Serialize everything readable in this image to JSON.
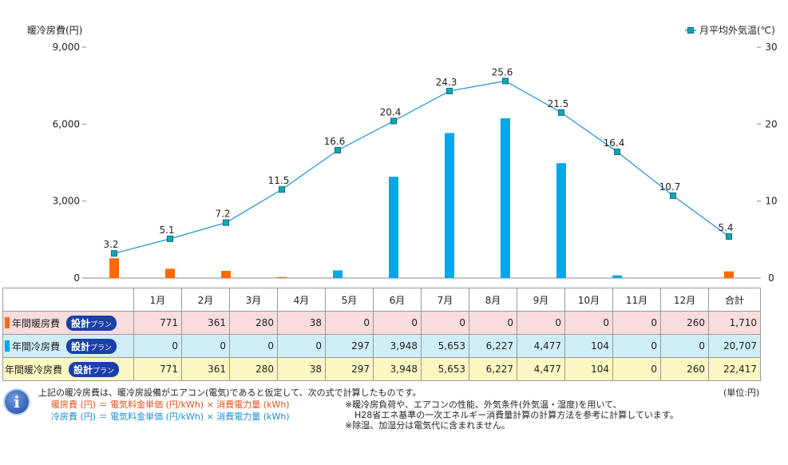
{
  "chart_data": {
    "type": "bar+line",
    "categories": [
      "1月",
      "2月",
      "3月",
      "4月",
      "5月",
      "6月",
      "7月",
      "8月",
      "9月",
      "10月",
      "11月",
      "12月"
    ],
    "y_left": {
      "label": "暖冷房費(円)",
      "ylim": [
        0,
        9000
      ],
      "ticks": [
        "0",
        "3,000",
        "6,000",
        "9,000"
      ]
    },
    "y_right": {
      "label": "月平均外気温(℃)",
      "ylim": [
        0,
        30
      ],
      "ticks": [
        "0",
        "10",
        "20",
        "30"
      ]
    },
    "series": [
      {
        "name": "年間暖房費",
        "kind": "bar",
        "axis": "left",
        "color": "#ff6a00",
        "values": [
          771,
          361,
          280,
          38,
          0,
          0,
          0,
          0,
          0,
          0,
          0,
          260
        ]
      },
      {
        "name": "年間冷房費",
        "kind": "bar",
        "axis": "left",
        "color": "#00a8e8",
        "values": [
          0,
          0,
          0,
          0,
          297,
          3948,
          5653,
          6227,
          4477,
          104,
          0,
          0
        ]
      },
      {
        "name": "月平均外気温(℃)",
        "kind": "line",
        "axis": "right",
        "color": "#1f8fd6",
        "values": [
          3.2,
          5.1,
          7.2,
          11.5,
          16.6,
          20.4,
          24.3,
          25.6,
          21.5,
          16.4,
          10.7,
          5.4
        ],
        "labels": [
          "3.2",
          "5.1",
          "7.2",
          "11.5",
          "16.6",
          "20.4",
          "24.3",
          "25.6",
          "21.5",
          "16.4",
          "10.7",
          "5.4"
        ]
      }
    ],
    "legend": "top-right",
    "grid": false
  },
  "table": {
    "total_header": "合計",
    "months": [
      "1月",
      "2月",
      "3月",
      "4月",
      "5月",
      "6月",
      "7月",
      "8月",
      "9月",
      "10月",
      "11月",
      "12月"
    ],
    "rows": [
      {
        "label": "年間暖房費",
        "color": "#ff6a00",
        "values": [
          "771",
          "361",
          "280",
          "38",
          "0",
          "0",
          "0",
          "0",
          "0",
          "0",
          "0",
          "260"
        ],
        "total": "1,710"
      },
      {
        "label": "年間冷房費",
        "color": "#00a8e8",
        "values": [
          "0",
          "0",
          "0",
          "0",
          "297",
          "3,948",
          "5,653",
          "6,227",
          "4,477",
          "104",
          "0",
          "0"
        ],
        "total": "20,707"
      },
      {
        "label": "年間暖冷房費",
        "color": "",
        "values": [
          "771",
          "361",
          "280",
          "38",
          "297",
          "3,948",
          "5,653",
          "6,227",
          "4,477",
          "104",
          "0",
          "260"
        ],
        "total": "22,417"
      }
    ],
    "badge_main": "設計",
    "badge_sub": "プラン"
  },
  "notes": {
    "info_icon_glyph": "i",
    "line1": "上記の暖冷房費は、暖冷房設備がエアコン(電気)であると仮定して、次の式で計算したものです。",
    "heat_formula": "暖房費 (円) ＝ 電気料金単価 (円/kWh) × 消費電力量 (kWh)",
    "cool_formula": "冷房費 (円) ＝ 電気料金単価 (円/kWh) × 消費電力量 (kWh)",
    "heat_color": "#e8501a",
    "cool_color": "#1a8fd0",
    "unit": "(単位:円)",
    "remark1": "※暖冷房負荷や、エアコンの性能、外気条件(外気温・湿度)を用いて、",
    "remark2": "H28省エネ基準の一次エネルギー消費量計算の計算方法を参考に計算しています。",
    "remark3": "※除湿、加湿分は電気代に含まれません。"
  }
}
